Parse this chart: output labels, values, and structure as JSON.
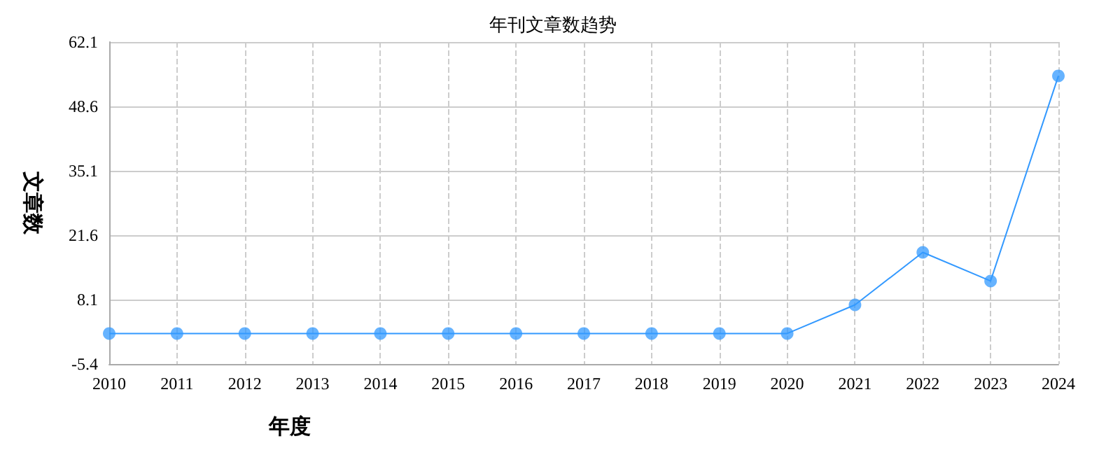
{
  "chart_data": {
    "type": "line",
    "title": "年刊文章数趋势",
    "xlabel": "年度",
    "ylabel": "文章数",
    "categories": [
      "2010",
      "2011",
      "2012",
      "2013",
      "2014",
      "2015",
      "2016",
      "2017",
      "2018",
      "2019",
      "2020",
      "2021",
      "2022",
      "2023",
      "2024"
    ],
    "series": [
      {
        "color": "#3399ff",
        "values": [
          1,
          1,
          1,
          1,
          1,
          1,
          1,
          1,
          1,
          1,
          1,
          7,
          18,
          12,
          55
        ]
      }
    ],
    "ylim": [
      -5.4,
      62.1
    ],
    "yticks": [
      -5.4,
      8.1,
      21.6,
      35.1,
      48.6,
      62.1
    ],
    "grid": true,
    "marker": "circle",
    "line_style": "solid"
  }
}
